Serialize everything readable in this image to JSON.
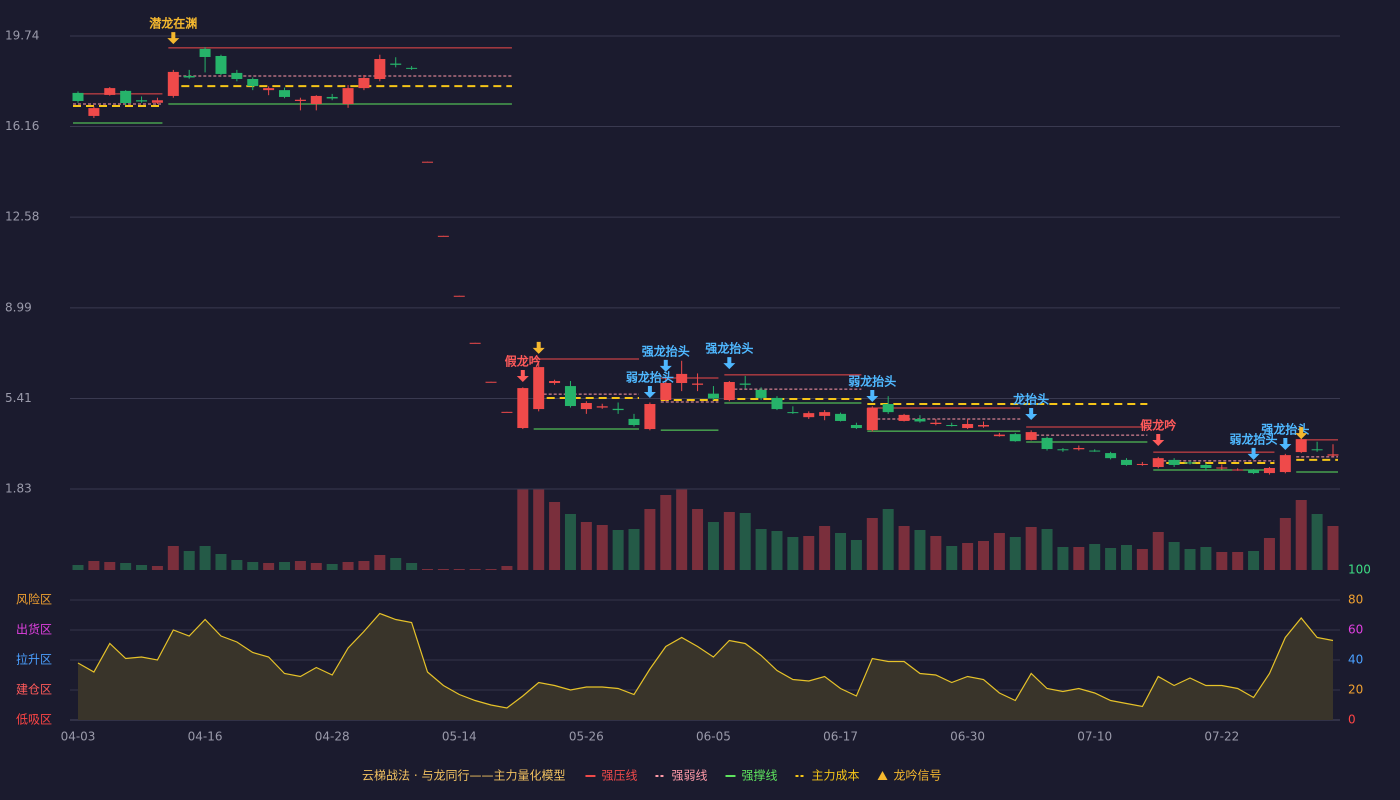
{
  "chart_data": [
    {
      "type": "candlestick",
      "categories": [
        "04-03",
        null,
        null,
        null,
        null,
        null,
        null,
        null,
        "04-16",
        null,
        null,
        null,
        null,
        null,
        null,
        null,
        "04-28",
        null,
        null,
        null,
        null,
        null,
        null,
        null,
        "05-14",
        null,
        null,
        null,
        null,
        null,
        null,
        null,
        "05-26",
        null,
        null,
        null,
        null,
        null,
        null,
        null,
        "06-05",
        null,
        null,
        null,
        null,
        null,
        null,
        null,
        "06-17",
        null,
        null,
        null,
        null,
        null,
        null,
        null,
        "06-30",
        null,
        null,
        null,
        null,
        null,
        null,
        null,
        "07-10",
        null,
        null,
        null,
        null,
        null,
        null,
        null,
        "07-22",
        null,
        null,
        null,
        null,
        null,
        null,
        null
      ],
      "open": [
        17.49,
        16.58,
        17.41,
        17.57,
        17.2,
        17.1,
        17.37,
        18.16,
        19.23,
        18.95,
        18.28,
        18.04,
        17.6,
        17.6,
        17.17,
        17.05,
        17.33,
        17.05,
        17.68,
        18.04,
        18.65,
        18.48,
        14.75,
        11.82,
        9.45,
        7.59,
        6.05,
        4.86,
        4.24,
        4.99,
        6.02,
        5.9,
        4.99,
        5.05,
        5.0,
        4.6,
        4.2,
        5.35,
        6.02,
        5.95,
        5.6,
        5.35,
        6.0,
        5.75,
        5.43,
        4.87,
        4.67,
        4.72,
        4.8,
        4.36,
        4.16,
        5.19,
        4.52,
        4.6,
        4.4,
        4.36,
        4.24,
        4.3,
        3.92,
        4.0,
        3.77,
        3.85,
        3.4,
        3.4,
        3.35,
        3.25,
        2.98,
        2.78,
        2.7,
        2.98,
        2.88,
        2.78,
        2.64,
        2.58,
        2.58,
        2.46,
        2.5,
        3.29,
        3.4,
        3.15
      ],
      "high": [
        17.55,
        16.95,
        17.72,
        17.6,
        17.35,
        17.3,
        18.4,
        18.4,
        19.3,
        19.0,
        18.4,
        18.1,
        17.75,
        17.7,
        17.3,
        17.4,
        17.45,
        17.8,
        18.2,
        19.0,
        18.9,
        18.55,
        14.77,
        11.84,
        9.47,
        7.61,
        6.07,
        4.88,
        5.85,
        6.8,
        6.15,
        6.1,
        5.3,
        5.2,
        5.25,
        4.8,
        5.25,
        6.2,
        6.9,
        6.4,
        5.9,
        6.1,
        6.3,
        5.85,
        5.5,
        5.1,
        4.9,
        4.95,
        4.85,
        4.45,
        5.1,
        5.5,
        4.8,
        4.75,
        4.6,
        4.45,
        4.6,
        4.5,
        4.05,
        4.05,
        4.15,
        3.9,
        3.45,
        3.55,
        3.4,
        3.3,
        3.05,
        2.9,
        3.1,
        3.05,
        2.95,
        2.85,
        2.8,
        2.65,
        2.62,
        2.7,
        3.22,
        3.95,
        3.7,
        3.6
      ],
      "low": [
        17.1,
        16.5,
        17.38,
        17.0,
        17.1,
        17.05,
        17.3,
        18.05,
        18.3,
        18.2,
        17.95,
        17.6,
        17.4,
        17.28,
        16.8,
        16.8,
        17.2,
        16.9,
        17.6,
        17.95,
        18.5,
        18.4,
        14.75,
        11.82,
        9.45,
        7.59,
        6.05,
        4.86,
        4.2,
        4.9,
        5.95,
        5.05,
        4.8,
        5.0,
        4.8,
        4.3,
        4.15,
        5.3,
        5.7,
        5.7,
        5.35,
        5.3,
        5.8,
        5.35,
        4.95,
        4.8,
        4.6,
        4.55,
        4.5,
        4.2,
        4.1,
        4.8,
        4.5,
        4.45,
        4.35,
        4.3,
        4.2,
        4.25,
        3.9,
        3.7,
        3.75,
        3.35,
        3.3,
        3.35,
        3.3,
        3.0,
        2.75,
        2.75,
        2.65,
        2.7,
        2.8,
        2.55,
        2.6,
        2.55,
        2.42,
        2.4,
        2.45,
        3.25,
        3.3,
        3.1
      ],
      "close": [
        17.17,
        16.89,
        17.68,
        17.09,
        17.15,
        17.2,
        18.32,
        18.1,
        18.91,
        18.24,
        18.04,
        17.76,
        17.68,
        17.33,
        17.22,
        17.37,
        17.27,
        17.68,
        18.08,
        18.83,
        18.6,
        18.45,
        14.77,
        11.84,
        9.47,
        7.61,
        6.07,
        4.88,
        5.82,
        6.65,
        6.1,
        5.11,
        5.23,
        5.1,
        4.95,
        4.36,
        5.19,
        6.02,
        6.38,
        6.0,
        5.41,
        6.06,
        5.95,
        5.43,
        4.99,
        4.83,
        4.83,
        4.87,
        4.52,
        4.24,
        5.03,
        4.87,
        4.76,
        4.5,
        4.45,
        4.32,
        4.4,
        4.36,
        3.98,
        3.72,
        4.08,
        3.41,
        3.37,
        3.45,
        3.32,
        3.05,
        2.78,
        2.82,
        3.05,
        2.78,
        2.85,
        2.66,
        2.68,
        2.6,
        2.46,
        2.66,
        3.17,
        3.8,
        3.36,
        3.2
      ],
      "up_color": "#ef4a4a",
      "down_color": "#26b36a",
      "ylim": [
        1.83,
        19.74
      ],
      "yticks": [
        1.83,
        5.41,
        8.99,
        12.58,
        16.16,
        19.74
      ],
      "grid": true,
      "series": [
        {
          "name": "强压线",
          "color": "#ef4a4a",
          "dashed": false,
          "segments": [
            {
              "start": 0,
              "end": 5,
              "value": 17.45
            },
            {
              "start": 6,
              "end": 27,
              "value": 19.27
            },
            {
              "start": 29,
              "end": 35,
              "value": 6.97
            },
            {
              "start": 37,
              "end": 40,
              "value": 6.22
            },
            {
              "start": 41,
              "end": 49,
              "value": 6.34
            },
            {
              "start": 50,
              "end": 59,
              "value": 5.03
            },
            {
              "start": 60,
              "end": 67,
              "value": 4.28
            },
            {
              "start": 68,
              "end": 75,
              "value": 3.29
            },
            {
              "start": 77,
              "end": 79,
              "value": 3.77
            }
          ]
        },
        {
          "name": "强弱线",
          "color": "#ff9aa8",
          "dashed": true,
          "segments": [
            {
              "start": 0,
              "end": 5,
              "value": 17.05
            },
            {
              "start": 6,
              "end": 27,
              "value": 18.16
            },
            {
              "start": 29,
              "end": 35,
              "value": 5.58
            },
            {
              "start": 37,
              "end": 40,
              "value": 5.27
            },
            {
              "start": 41,
              "end": 49,
              "value": 5.78
            },
            {
              "start": 50,
              "end": 59,
              "value": 4.6
            },
            {
              "start": 60,
              "end": 67,
              "value": 3.96
            },
            {
              "start": 68,
              "end": 75,
              "value": 2.94
            },
            {
              "start": 77,
              "end": 79,
              "value": 3.1
            }
          ]
        },
        {
          "name": "强撑线",
          "color": "#5ee35e",
          "dashed": false,
          "segments": [
            {
              "start": 0,
              "end": 5,
              "value": 16.3
            },
            {
              "start": 6,
              "end": 27,
              "value": 17.05
            },
            {
              "start": 29,
              "end": 35,
              "value": 4.2
            },
            {
              "start": 37,
              "end": 40,
              "value": 4.16
            },
            {
              "start": 41,
              "end": 49,
              "value": 5.23
            },
            {
              "start": 50,
              "end": 59,
              "value": 4.12
            },
            {
              "start": 60,
              "end": 67,
              "value": 3.69
            },
            {
              "start": 68,
              "end": 75,
              "value": 2.58
            },
            {
              "start": 77,
              "end": 79,
              "value": 2.5
            }
          ]
        },
        {
          "name": "主力成本",
          "color": "#f5c518",
          "dashed": true,
          "segments": [
            {
              "start": 0,
              "end": 5,
              "value": 16.97
            },
            {
              "start": 6,
              "end": 27,
              "value": 17.76
            },
            {
              "start": 29,
              "end": 35,
              "value": 5.43
            },
            {
              "start": 37,
              "end": 40,
              "value": 5.35
            },
            {
              "start": 41,
              "end": 49,
              "value": 5.39
            },
            {
              "start": 50,
              "end": 67,
              "value": 5.19
            },
            {
              "start": 68,
              "end": 75,
              "value": 2.86
            },
            {
              "start": 77,
              "end": 79,
              "value": 2.98
            }
          ]
        }
      ],
      "signal_name": "龙吟信号",
      "signal_color": "#f5b82e",
      "signals": [
        {
          "label": "潜龙在渊",
          "index": 6,
          "price": 19.42,
          "color": "#f5b82e"
        },
        {
          "label": "假龙吟",
          "index": 28,
          "price": 6.06,
          "color": "#ff5a5a"
        },
        {
          "index": 29,
          "price": 7.17,
          "color": "#f5b82e"
        },
        {
          "label": "弱龙抬头",
          "index": 36,
          "price": 5.43,
          "color": "#4fb8ff"
        },
        {
          "label": "强龙抬头",
          "index": 37,
          "price": 6.46,
          "color": "#4fb8ff"
        },
        {
          "label": "强龙抬头",
          "index": 41,
          "price": 6.57,
          "color": "#4fb8ff"
        },
        {
          "label": "弱龙抬头",
          "index": 50,
          "price": 5.27,
          "color": "#4fb8ff"
        },
        {
          "label": "龙抬头",
          "index": 60,
          "price": 4.56,
          "color": "#4fb8ff"
        },
        {
          "label": "假龙吟",
          "index": 68,
          "price": 3.53,
          "color": "#ff5a5a"
        },
        {
          "label": "弱龙抬头",
          "index": 74,
          "price": 2.98,
          "color": "#4fb8ff"
        },
        {
          "label": "强龙抬头",
          "index": 76,
          "price": 3.37,
          "color": "#4fb8ff"
        },
        {
          "index": 77,
          "price": 3.8,
          "color": "#f5b82e"
        }
      ]
    },
    {
      "type": "bar",
      "values": [
        5,
        9,
        8,
        7,
        5,
        4,
        24,
        19,
        24,
        16,
        10,
        8,
        7,
        8,
        9,
        7,
        6,
        8,
        9,
        15,
        12,
        7,
        1,
        1,
        1,
        1,
        1,
        4,
        81,
        81,
        68,
        56,
        48,
        45,
        40,
        41,
        61,
        75,
        81,
        61,
        48,
        58,
        57,
        41,
        39,
        33,
        34,
        44,
        37,
        30,
        52,
        61,
        44,
        40,
        34,
        24,
        27,
        29,
        37,
        33,
        43,
        41,
        23,
        23,
        26,
        22,
        25,
        21,
        38,
        28,
        21,
        23,
        18,
        18,
        19,
        32,
        52,
        70,
        56,
        44
      ],
      "up_color": "#7a2f3c",
      "down_color": "#245a47"
    },
    {
      "type": "area",
      "values": [
        38,
        32,
        51,
        41,
        42,
        40,
        60,
        56,
        67,
        56,
        52,
        45,
        42,
        31,
        29,
        35,
        30,
        48,
        59,
        71,
        67,
        65,
        32,
        23,
        17,
        13,
        10,
        8,
        16,
        25,
        23,
        20,
        22,
        22,
        21,
        17,
        34,
        49,
        55,
        49,
        42,
        53,
        51,
        43,
        33,
        27,
        26,
        29,
        21,
        16,
        41,
        39,
        39,
        31,
        30,
        25,
        29,
        27,
        18,
        13,
        31,
        21,
        19,
        21,
        18,
        13,
        11,
        9,
        29,
        23,
        28,
        23,
        23,
        21,
        15,
        31,
        55,
        68,
        55,
        53
      ],
      "color": "#e6c229",
      "fill": "#39342a",
      "ylim": [
        0,
        100
      ],
      "yticks": [
        0,
        20,
        40,
        60,
        80,
        100
      ],
      "ytick_colors": [
        "#ff4545",
        "#f0a030",
        "#4a9fff",
        "#e040e0",
        "#f0a030",
        "#3ddc84"
      ],
      "zones": [
        {
          "label": "风险区",
          "value": 80,
          "color": "#f0a030"
        },
        {
          "label": "出货区",
          "value": 60,
          "color": "#e040e0"
        },
        {
          "label": "拉升区",
          "value": 40,
          "color": "#4a9fff"
        },
        {
          "label": "建仓区",
          "value": 20,
          "color": "#ff5a5a"
        },
        {
          "label": "低吸区",
          "value": 0,
          "color": "#ff4545"
        }
      ]
    }
  ],
  "legend": {
    "title": "云梯战法 · 与龙同行——主力量化模型",
    "color": "#f0c060"
  }
}
